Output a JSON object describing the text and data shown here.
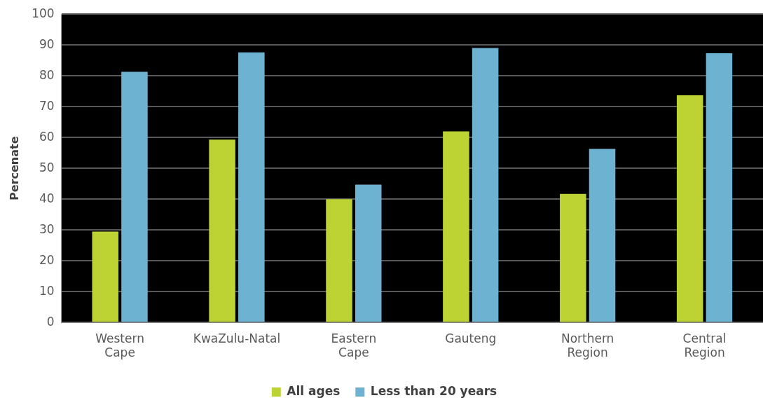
{
  "chart_data": {
    "type": "bar",
    "ylabel": "Percenate",
    "categories": [
      "Western\nCape",
      "KwaZulu-Natal",
      "Eastern\nCape",
      "Gauteng",
      "Northern\nRegion",
      "Central\nRegion"
    ],
    "series": [
      {
        "name": "All ages",
        "color": "#bdd233",
        "values": [
          29.5,
          59.3,
          40,
          62,
          41.7,
          73.7
        ]
      },
      {
        "name": "Less than 20 years",
        "color": "#6db2d0",
        "values": [
          81.3,
          87.6,
          44.7,
          89,
          56.3,
          87.3
        ]
      }
    ],
    "ylim": [
      0,
      100
    ],
    "yticks": [
      0,
      10,
      20,
      30,
      40,
      50,
      60,
      70,
      80,
      90,
      100
    ],
    "grid": "y",
    "legend": "bottom"
  }
}
